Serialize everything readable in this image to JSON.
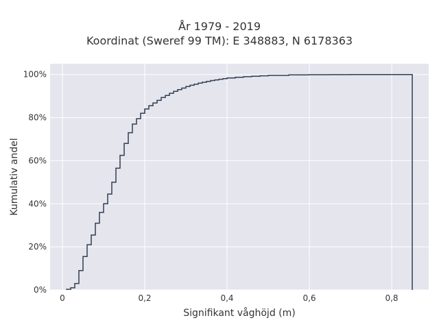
{
  "chart_data": {
    "type": "line",
    "step": true,
    "title_lines": [
      "År 1979 - 2019",
      "Koordinat (Sweref 99 TM): E 348883, N 6178363"
    ],
    "xlabel": "Signifikant våghöjd (m)",
    "ylabel": "Kumulativ andel",
    "xlim": [
      -0.03,
      0.89
    ],
    "ylim": [
      0,
      1.05
    ],
    "x_ticks": [
      0,
      0.2,
      0.4,
      0.6,
      0.8
    ],
    "x_tick_labels": [
      "0",
      "0,2",
      "0,4",
      "0,6",
      "0,8"
    ],
    "y_ticks": [
      0,
      0.2,
      0.4,
      0.6,
      0.8,
      1.0
    ],
    "y_tick_labels": [
      "0%",
      "20%",
      "40%",
      "60%",
      "80%",
      "100%"
    ],
    "grid": true,
    "background": "#e5e5ee",
    "line_color": "#2f3e50",
    "series": [
      {
        "x": [
          0.01,
          0.02,
          0.03,
          0.04,
          0.05,
          0.06,
          0.07,
          0.08,
          0.09,
          0.1,
          0.11,
          0.12,
          0.13,
          0.14,
          0.15,
          0.16,
          0.17,
          0.18,
          0.19,
          0.2,
          0.21,
          0.22,
          0.23,
          0.24,
          0.25,
          0.26,
          0.27,
          0.28,
          0.29,
          0.3,
          0.31,
          0.32,
          0.33,
          0.34,
          0.35,
          0.36,
          0.37,
          0.38,
          0.39,
          0.4,
          0.42,
          0.44,
          0.46,
          0.48,
          0.5,
          0.55,
          0.6,
          0.65,
          0.7,
          0.85
        ],
        "y": [
          0.003,
          0.01,
          0.03,
          0.09,
          0.155,
          0.21,
          0.255,
          0.31,
          0.36,
          0.4,
          0.445,
          0.5,
          0.565,
          0.625,
          0.68,
          0.73,
          0.77,
          0.795,
          0.82,
          0.84,
          0.855,
          0.868,
          0.88,
          0.893,
          0.903,
          0.913,
          0.922,
          0.93,
          0.937,
          0.944,
          0.95,
          0.955,
          0.96,
          0.964,
          0.968,
          0.972,
          0.975,
          0.978,
          0.981,
          0.984,
          0.987,
          0.99,
          0.992,
          0.994,
          0.996,
          0.998,
          0.999,
          0.9995,
          1.0,
          1.0
        ]
      }
    ]
  }
}
